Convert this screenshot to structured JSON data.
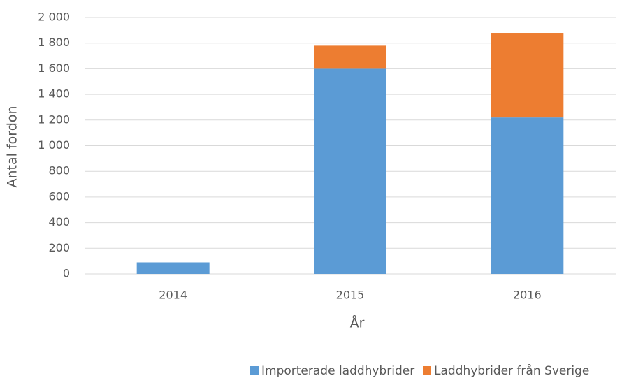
{
  "chart_data": {
    "type": "stacked_bar",
    "categories": [
      "2014",
      "2015",
      "2016"
    ],
    "series": [
      {
        "name": "Importerade laddhybrider",
        "color": "#5b9bd5",
        "values": [
          90,
          1600,
          1220
        ]
      },
      {
        "name": "Laddhybrider från Sverige",
        "color": "#ed7d31",
        "values": [
          0,
          180,
          660
        ]
      }
    ],
    "xlabel": "År",
    "ylabel": "Antal fordon",
    "ylim": [
      0,
      2000
    ],
    "yticks": [
      0,
      200,
      400,
      600,
      800,
      {
        "value": 1000,
        "label": "1 000"
      },
      {
        "value": 1200,
        "label": "1 200"
      },
      {
        "value": 1400,
        "label": "1 400"
      },
      {
        "value": 1600,
        "label": "1 600"
      },
      {
        "value": 1800,
        "label": "1 800"
      },
      {
        "value": 2000,
        "label": "2 000"
      }
    ],
    "grid": true,
    "legend": "bottom"
  }
}
